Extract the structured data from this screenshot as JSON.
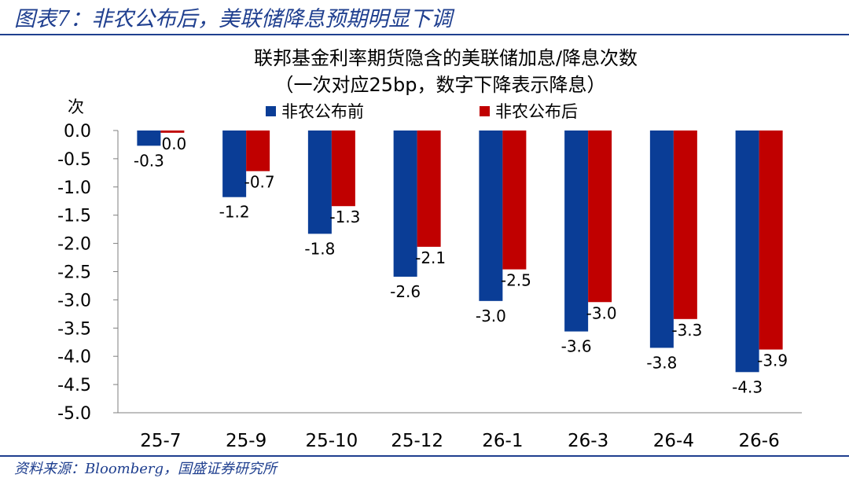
{
  "figure_title": "图表7：非农公布后，美联储降息预期明显下调",
  "source": "资料来源：Bloomberg，国盛证券研究所",
  "colors": {
    "brand": "#1f3f8f",
    "series_before": "#0a3d96",
    "series_after": "#c00000"
  },
  "chart_data": {
    "type": "bar",
    "title": "联邦基金利率期货隐含的美联储加息/降息次数",
    "subtitle": "（一次对应25bp，数字下降表示降息）",
    "ylabel": "次",
    "xlabel": "",
    "categories": [
      "25-7",
      "25-9",
      "25-10",
      "25-12",
      "26-1",
      "26-3",
      "26-4",
      "26-6"
    ],
    "series": [
      {
        "name": "非农公布前",
        "values": [
          -0.27,
          -1.18,
          -1.83,
          -2.59,
          -3.02,
          -3.56,
          -3.85,
          -4.28
        ],
        "labels": [
          "-0.3",
          "-1.2",
          "-1.8",
          "-2.6",
          "-3.0",
          "-3.6",
          "-3.8",
          "-4.3"
        ]
      },
      {
        "name": "非农公布后",
        "values": [
          -0.04,
          -0.72,
          -1.34,
          -2.06,
          -2.46,
          -3.04,
          -3.34,
          -3.88
        ],
        "labels": [
          "0.0",
          "-0.7",
          "-1.3",
          "-2.1",
          "-2.5",
          "-3.0",
          "-3.3",
          "-3.9"
        ]
      }
    ],
    "ylim": [
      -5.0,
      0.0
    ],
    "yticks": [
      "0.0",
      "-0.5",
      "-1.0",
      "-1.5",
      "-2.0",
      "-2.5",
      "-3.0",
      "-3.5",
      "-4.0",
      "-4.5",
      "-5.0"
    ],
    "ytick_values": [
      0.0,
      -0.5,
      -1.0,
      -1.5,
      -2.0,
      -2.5,
      -3.0,
      -3.5,
      -4.0,
      -4.5,
      -5.0
    ],
    "grid": false,
    "legend_position": "top"
  }
}
